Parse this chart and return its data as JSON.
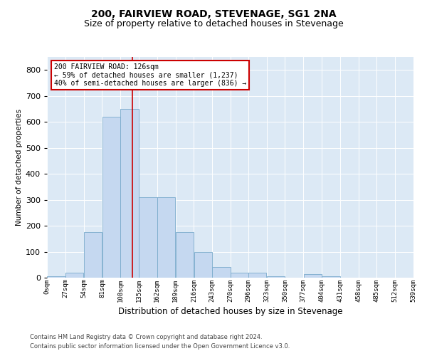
{
  "title": "200, FAIRVIEW ROAD, STEVENAGE, SG1 2NA",
  "subtitle": "Size of property relative to detached houses in Stevenage",
  "xlabel": "Distribution of detached houses by size in Stevenage",
  "ylabel": "Number of detached properties",
  "bin_starts": [
    0,
    27,
    54,
    81,
    108,
    135,
    162,
    189,
    216,
    243,
    270,
    296,
    323,
    350,
    377,
    404,
    431,
    458,
    485,
    512
  ],
  "bin_width": 27,
  "bar_heights": [
    5,
    20,
    175,
    620,
    650,
    310,
    310,
    175,
    100,
    40,
    20,
    20,
    5,
    0,
    15,
    5,
    0,
    0,
    0,
    0
  ],
  "bar_color": "#c5d8f0",
  "bar_edge_color": "#7aabcc",
  "property_size": 126,
  "property_line_color": "#cc0000",
  "ylim": [
    0,
    850
  ],
  "yticks": [
    0,
    100,
    200,
    300,
    400,
    500,
    600,
    700,
    800
  ],
  "annotation_text": "200 FAIRVIEW ROAD: 126sqm\n← 59% of detached houses are smaller (1,237)\n40% of semi-detached houses are larger (836) →",
  "annotation_box_color": "#cc0000",
  "plot_bg_color": "#dce9f5",
  "footer_line1": "Contains HM Land Registry data © Crown copyright and database right 2024.",
  "footer_line2": "Contains public sector information licensed under the Open Government Licence v3.0.",
  "title_fontsize": 10,
  "subtitle_fontsize": 9,
  "tick_labels": [
    "0sqm",
    "27sqm",
    "54sqm",
    "81sqm",
    "108sqm",
    "135sqm",
    "162sqm",
    "189sqm",
    "216sqm",
    "243sqm",
    "270sqm",
    "296sqm",
    "323sqm",
    "350sqm",
    "377sqm",
    "404sqm",
    "431sqm",
    "458sqm",
    "485sqm",
    "512sqm",
    "539sqm"
  ]
}
